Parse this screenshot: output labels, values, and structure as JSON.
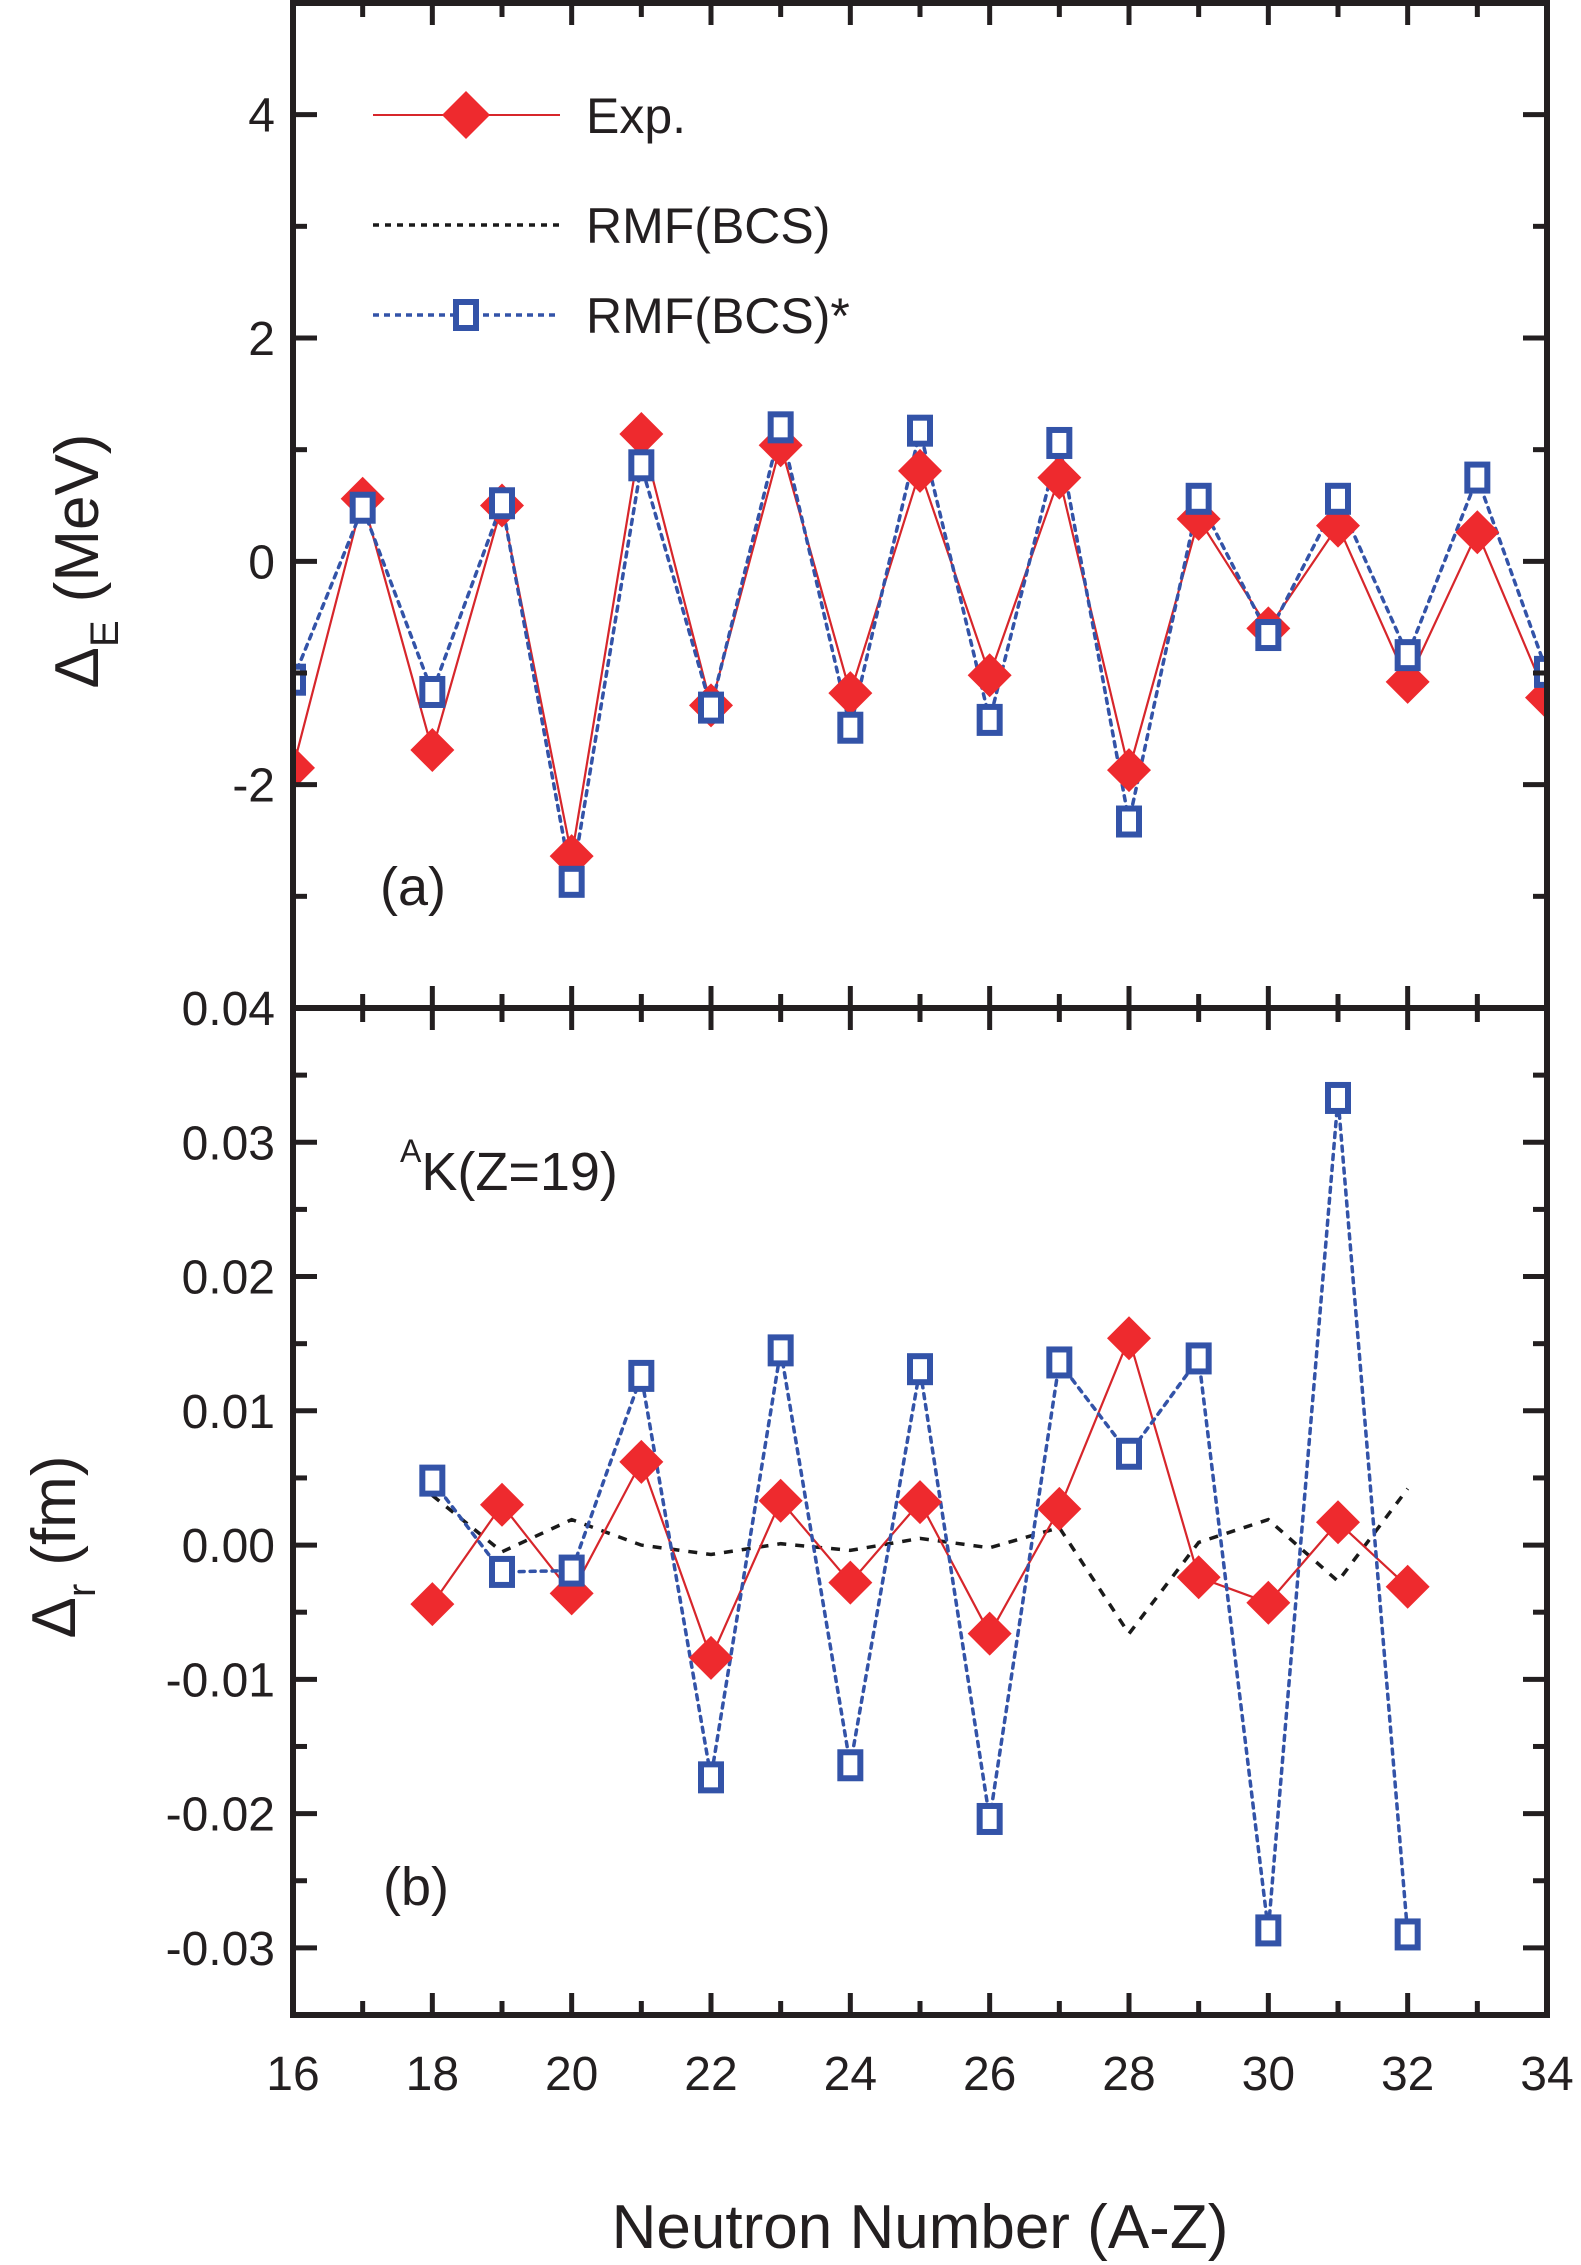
{
  "chart_data": [
    {
      "panel_label": "(a)",
      "type": "line",
      "title": "",
      "xlabel": "Neutron Number (A-Z)",
      "ylabel": "Δ_E (MeV)",
      "ylabel_main": "Δ",
      "ylabel_sub": "E",
      "ylabel_unit": "(MeV)",
      "xlim": [
        16,
        34
      ],
      "ylim": [
        -4,
        5
      ],
      "yticks": [
        -2,
        0,
        2,
        4
      ],
      "ytick_labels": [
        "-2",
        "0",
        "2",
        "4"
      ],
      "grid": false,
      "legend_position": "top-left",
      "x": [
        16,
        17,
        18,
        19,
        20,
        21,
        22,
        23,
        24,
        25,
        26,
        27,
        28,
        29,
        30,
        31,
        32,
        33,
        34
      ],
      "series": [
        {
          "name": "Exp.",
          "color": "#ee2a2e",
          "line_color": "#d7262b",
          "marker": "diamond",
          "line": "solid",
          "values": [
            -1.85,
            0.56,
            -1.69,
            0.5,
            -2.64,
            1.14,
            -1.29,
            1.04,
            -1.18,
            0.81,
            -1.02,
            0.75,
            -1.87,
            0.38,
            -0.6,
            0.32,
            -1.08,
            0.26,
            -1.22
          ]
        },
        {
          "name": "RMF(BCS)",
          "color": "#1a1a1a",
          "marker": "none",
          "line": "dashed",
          "values": []
        },
        {
          "name": "RMF(BCS)*",
          "color": "#3353a8",
          "marker": "open-square",
          "line": "dotted",
          "values": [
            -1.06,
            0.48,
            -1.17,
            0.52,
            -2.87,
            0.86,
            -1.31,
            1.2,
            -1.49,
            1.17,
            -1.42,
            1.06,
            -2.33,
            0.56,
            -0.66,
            0.56,
            -0.84,
            0.75,
            -0.99
          ]
        }
      ]
    },
    {
      "panel_label": "(b)",
      "annotation": {
        "sup": "A",
        "text": "K(Z=19)"
      },
      "type": "line",
      "title": "",
      "xlabel": "Neutron Number (A-Z)",
      "ylabel": "Δ_r (fm)",
      "ylabel_main": "Δ",
      "ylabel_sub": "r",
      "ylabel_unit": "(fm)",
      "xlim": [
        16,
        34
      ],
      "ylim": [
        -0.035,
        0.04
      ],
      "yticks": [
        -0.03,
        -0.02,
        -0.01,
        0.0,
        0.01,
        0.02,
        0.03,
        0.04
      ],
      "ytick_labels": [
        "-0.03",
        "-0.02",
        "-0.01",
        "0.00",
        "0.01",
        "0.02",
        "0.03",
        "0.04"
      ],
      "xticks": [
        16,
        18,
        20,
        22,
        24,
        26,
        28,
        30,
        32,
        34
      ],
      "xtick_labels": [
        "16",
        "18",
        "20",
        "22",
        "24",
        "26",
        "28",
        "30",
        "32",
        "34"
      ],
      "grid": false,
      "x": [
        18,
        19,
        20,
        21,
        22,
        23,
        24,
        25,
        26,
        27,
        28,
        29,
        30,
        31,
        32
      ],
      "series": [
        {
          "name": "Exp.",
          "color": "#ee2a2e",
          "line_color": "#d7262b",
          "marker": "diamond",
          "line": "solid",
          "values": [
            -0.0044,
            0.003,
            -0.0036,
            0.0062,
            -0.0084,
            0.0033,
            -0.0028,
            0.0032,
            -0.0066,
            0.0027,
            0.0154,
            -0.0024,
            -0.0043,
            0.0017,
            -0.0031
          ]
        },
        {
          "name": "RMF(BCS)",
          "color": "#1a1a1a",
          "marker": "none",
          "line": "dashed",
          "values": [
            0.0037,
            -0.0005,
            0.0019,
            0.0,
            -0.0007,
            0.0001,
            -0.0004,
            0.0005,
            -0.0002,
            0.0013,
            -0.0066,
            0.0002,
            0.0019,
            -0.0027,
            0.0042
          ]
        },
        {
          "name": "RMF(BCS)*",
          "color": "#3353a8",
          "marker": "open-square",
          "line": "dotted",
          "values": [
            0.0048,
            -0.002,
            -0.0019,
            0.0126,
            -0.0173,
            0.0145,
            -0.0164,
            0.0131,
            -0.0204,
            0.0136,
            0.0068,
            0.0139,
            -0.0287,
            0.0333,
            -0.029
          ]
        }
      ]
    }
  ]
}
